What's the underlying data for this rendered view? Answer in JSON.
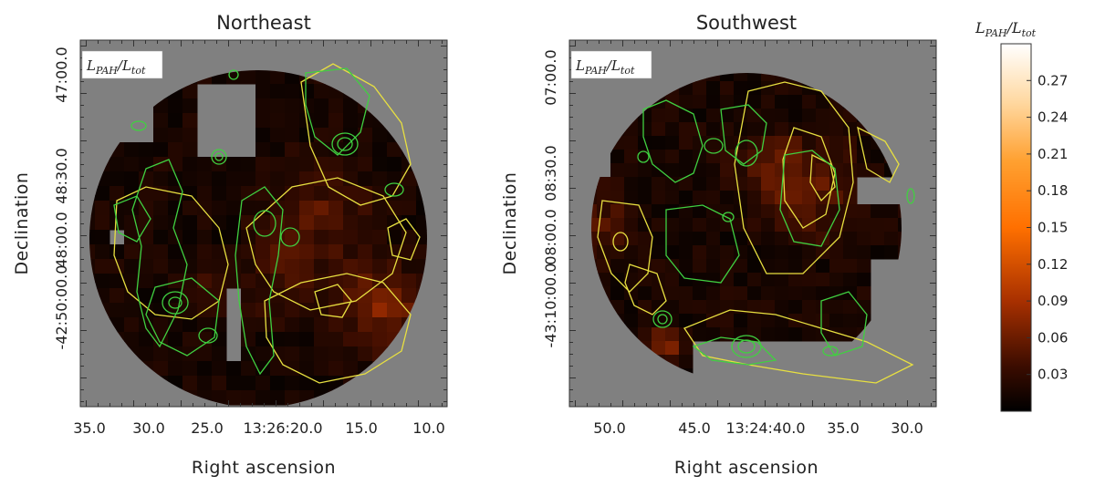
{
  "chart_data": [
    {
      "type": "heatmap",
      "title": "Northeast",
      "inset_label": "L_PAH/L_tot",
      "xlabel": "Right ascension",
      "ylabel": "Declination",
      "x_ticks": [
        "35.0",
        "30.0",
        "25.0",
        "13:26:20.0",
        "15.0",
        "10.0"
      ],
      "y_ticks": [
        "47:00.0",
        "48:30.0",
        "48:00.0",
        "-42:50:00.0",
        "50:00.0",
        "-42:50:00.0",
        "50:00.0"
      ],
      "x_ticks_visible": [
        "35.0",
        "30.0",
        "25.0",
        "13:26:20.0",
        "15.0",
        "10.0"
      ],
      "y_ticks_visible": [
        "47:00.0",
        "48:30.0",
        "48:",
        "-42:50:00.0",
        "-42:50:00.0"
      ],
      "masked_color": "#808080",
      "contours": [
        {
          "name": "yellow",
          "color": "#e8e040"
        },
        {
          "name": "green",
          "color": "#40d040"
        }
      ]
    },
    {
      "type": "heatmap",
      "title": "Southwest",
      "inset_label": "L_PAH/L_tot",
      "xlabel": "Right ascension",
      "ylabel": "Declination",
      "x_ticks": [
        "50.0",
        "45.0",
        "13:24:40.0",
        "35.0",
        "30.0"
      ],
      "y_ticks": [
        "07:00.0",
        "08:30.0",
        "08:00.0",
        "-43:10:00.0",
        "10:00.0",
        "-43:10:00.0"
      ],
      "masked_color": "#808080",
      "contours": [
        {
          "name": "yellow",
          "color": "#e8e040"
        },
        {
          "name": "green",
          "color": "#40d040"
        }
      ]
    }
  ],
  "ne": {
    "title": "Northeast",
    "inset": "L",
    "xlabel": "Right ascension",
    "ylabel": "Declination",
    "xticks": [
      "35.0",
      "30.0",
      "25.0",
      "13:26:20.0",
      "15.0",
      "10.0"
    ],
    "yticks": [
      "47:00.0",
      "48:30.0",
      "48:00.0",
      "-42:50:00.0",
      "50:00.0"
    ]
  },
  "sw": {
    "title": "Southwest",
    "xlabel": "Right ascension",
    "ylabel": "Declination",
    "xticks": [
      "50.0",
      "45.0",
      "13:24:40.0",
      "35.0",
      "30.0"
    ],
    "yticks": [
      "07:00.0",
      "08:30.0",
      "08:00.0",
      "-43:10:00.0",
      "10:00.0"
    ]
  },
  "colorbar": {
    "title": "L_PAH/L_tot",
    "ticks": [
      "0.27",
      "0.24",
      "0.21",
      "0.18",
      "0.15",
      "0.12",
      "0.09",
      "0.06",
      "0.03"
    ],
    "tick_values": [
      0.27,
      0.24,
      0.21,
      0.18,
      0.15,
      0.12,
      0.09,
      0.06,
      0.03
    ],
    "range": [
      0.0,
      0.3
    ]
  }
}
